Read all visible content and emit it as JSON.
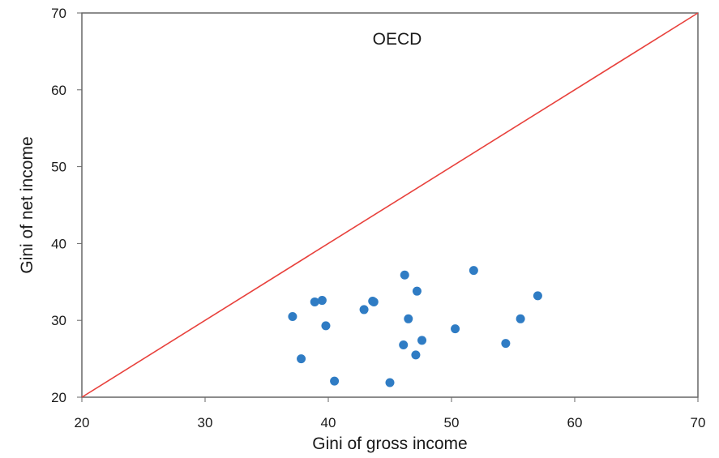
{
  "chart_data": {
    "type": "scatter",
    "annotation": "OECD",
    "xlabel": "Gini of gross income",
    "ylabel": "Gini of net income",
    "xlim": [
      20,
      70
    ],
    "ylim": [
      20,
      70
    ],
    "x_ticks": [
      20,
      30,
      40,
      50,
      60,
      70
    ],
    "y_ticks": [
      20,
      30,
      40,
      50,
      60,
      70
    ],
    "grid": false,
    "legend": "none",
    "reference_line": {
      "from": [
        20,
        20
      ],
      "to": [
        70,
        70
      ],
      "color": "#e8413c"
    },
    "point_color": "#2f7cc4",
    "points": [
      {
        "x": 37.1,
        "y": 30.5
      },
      {
        "x": 37.8,
        "y": 25.0
      },
      {
        "x": 38.9,
        "y": 32.4
      },
      {
        "x": 39.5,
        "y": 32.6
      },
      {
        "x": 39.8,
        "y": 29.3
      },
      {
        "x": 40.5,
        "y": 22.1
      },
      {
        "x": 42.9,
        "y": 31.4
      },
      {
        "x": 43.6,
        "y": 32.5
      },
      {
        "x": 43.7,
        "y": 32.4
      },
      {
        "x": 45.0,
        "y": 21.9
      },
      {
        "x": 46.1,
        "y": 26.8
      },
      {
        "x": 46.2,
        "y": 35.9
      },
      {
        "x": 46.5,
        "y": 30.2
      },
      {
        "x": 47.1,
        "y": 25.5
      },
      {
        "x": 47.2,
        "y": 33.8
      },
      {
        "x": 47.6,
        "y": 27.4
      },
      {
        "x": 50.3,
        "y": 28.9
      },
      {
        "x": 51.8,
        "y": 36.5
      },
      {
        "x": 54.4,
        "y": 27.0
      },
      {
        "x": 55.6,
        "y": 30.2
      },
      {
        "x": 57.0,
        "y": 33.2
      }
    ]
  }
}
